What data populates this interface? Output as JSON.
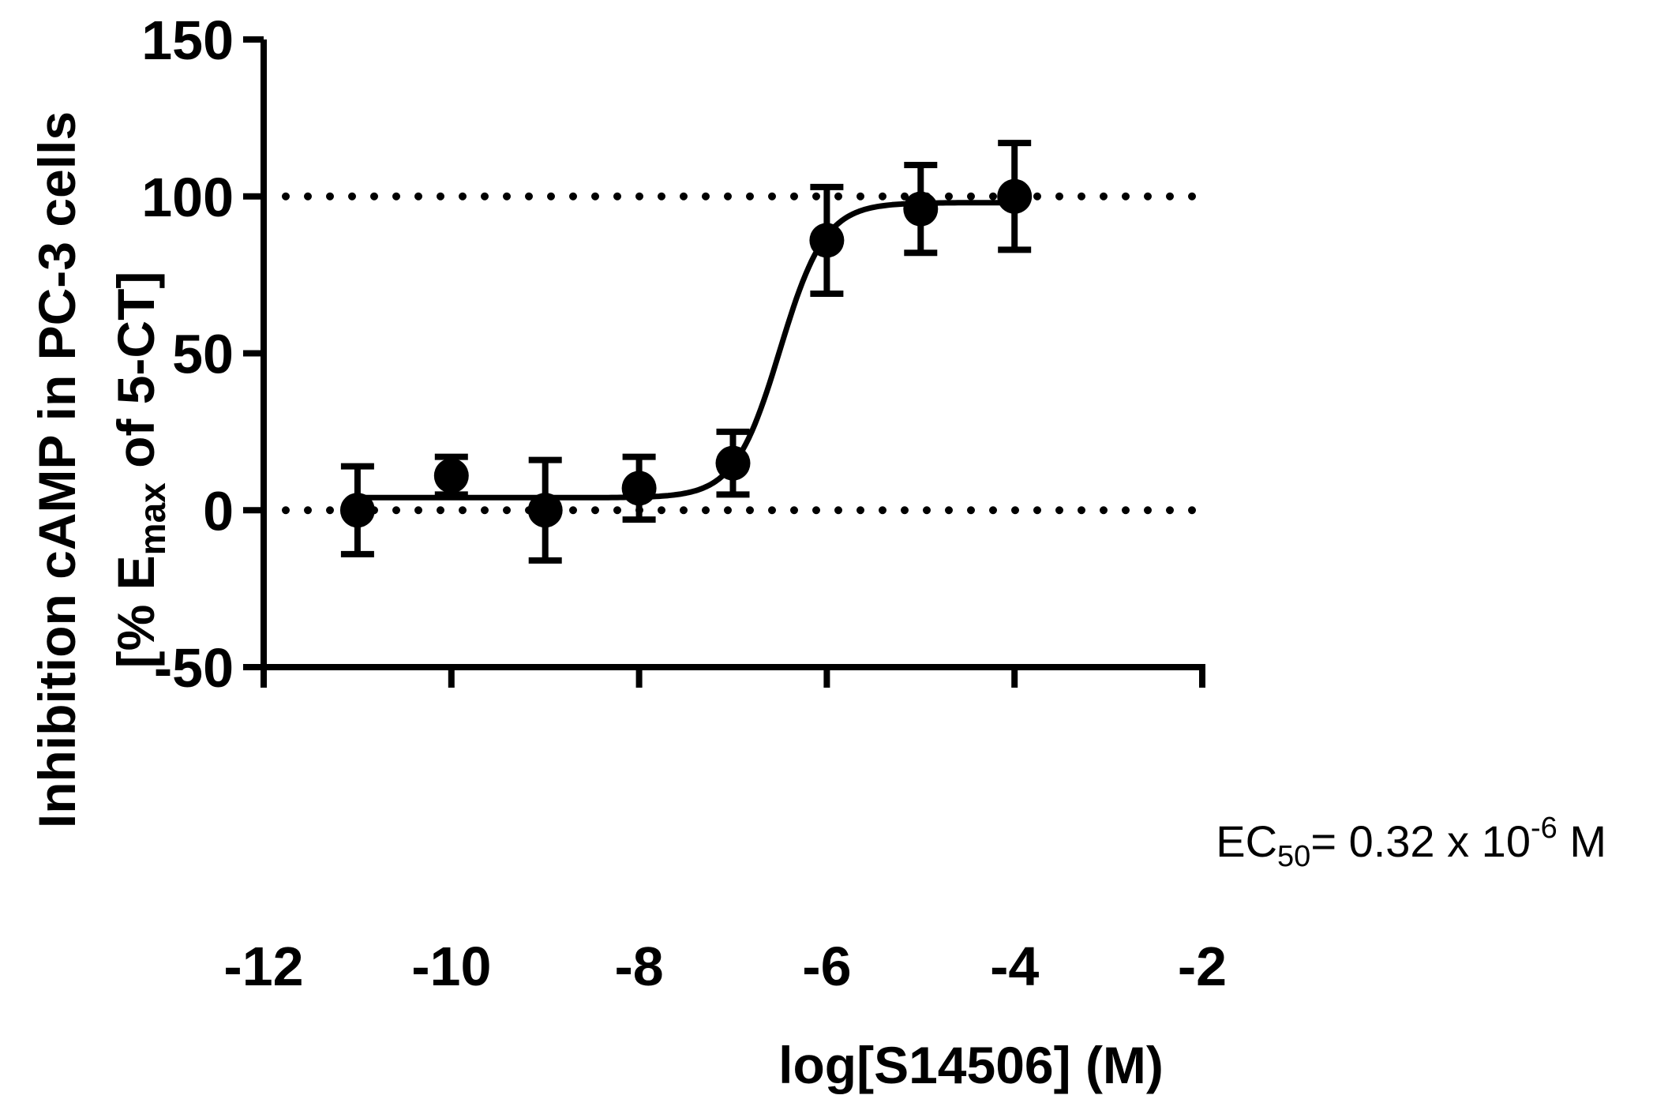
{
  "chart_data": {
    "type": "scatter",
    "title": "",
    "xlabel": "log[S14506] (M)",
    "ylabel_line1": "Inhibition cAMP in PC-3 cells",
    "ylabel_line2": {
      "prefix": "[% E",
      "sub": "max",
      "suffix": " of 5-CT]"
    },
    "xlim": [
      -12,
      -2
    ],
    "ylim": [
      -50,
      150
    ],
    "x_ticks": [
      -12,
      -10,
      -8,
      -6,
      -4,
      -2
    ],
    "x_tick_labels": [
      "-12",
      "-10",
      "-8",
      "-6",
      "-4",
      "-2"
    ],
    "y_ticks": [
      -50,
      0,
      50,
      100,
      150
    ],
    "y_tick_labels": [
      "-50",
      "0",
      "50",
      "100",
      "150"
    ],
    "reference_lines": [
      0,
      100
    ],
    "series": [
      {
        "name": "S14506",
        "points": [
          {
            "x": -11,
            "y": 0,
            "err": 14
          },
          {
            "x": -10,
            "y": 11,
            "err": 6
          },
          {
            "x": -9,
            "y": 0,
            "err": 16
          },
          {
            "x": -8,
            "y": 7,
            "err": 10
          },
          {
            "x": -7,
            "y": 15,
            "err": 10
          },
          {
            "x": -6,
            "y": 86,
            "err": 17
          },
          {
            "x": -5,
            "y": 96,
            "err": 14
          },
          {
            "x": -4,
            "y": 100,
            "err": 17
          }
        ]
      }
    ],
    "fit": {
      "model": "sigmoidal dose-response",
      "bottom": 4,
      "top": 98,
      "logEC50": -6.5,
      "hill": 1.8,
      "x_range": [
        -11,
        -4
      ]
    },
    "annotation": {
      "prefix": "EC",
      "sub": "50",
      "mid": "= 0.32 x 10",
      "sup": "-6",
      "suffix": " M"
    }
  }
}
